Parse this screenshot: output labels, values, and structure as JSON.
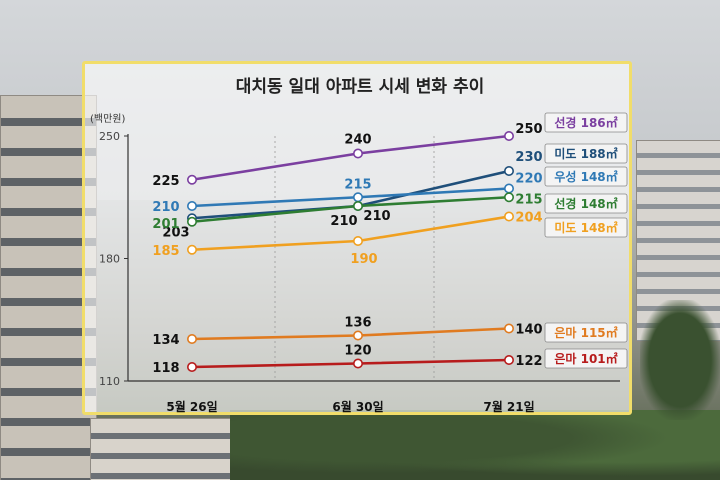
{
  "chart_data": {
    "type": "line",
    "title": "대치동 일대 아파트 시세 변화 추이",
    "unit_label": "(백만원)",
    "categories": [
      "5월 26일",
      "6월 30일",
      "7월 21일"
    ],
    "ylim": [
      110,
      250
    ],
    "yticks": [
      110,
      180,
      250
    ],
    "grid": false,
    "series": [
      {
        "name": "선경 186㎡",
        "values": [
          225,
          240,
          250
        ],
        "color": "#7b3fa0"
      },
      {
        "name": "미도 188㎡",
        "values": [
          203,
          210,
          230
        ],
        "color": "#1f4f7a"
      },
      {
        "name": "우성 148㎡",
        "values": [
          210,
          215,
          220
        ],
        "color": "#2f79b5"
      },
      {
        "name": "선경 148㎡",
        "values": [
          201,
          210,
          215
        ],
        "color": "#2e7d32"
      },
      {
        "name": "미도 148㎡",
        "values": [
          185,
          190,
          204
        ],
        "color": "#f0a020"
      },
      {
        "name": "은마 115㎡",
        "values": [
          134,
          136,
          140
        ],
        "color": "#e07b20"
      },
      {
        "name": "은마 101㎡",
        "values": [
          118,
          120,
          122
        ],
        "color": "#b71c1c"
      }
    ]
  }
}
